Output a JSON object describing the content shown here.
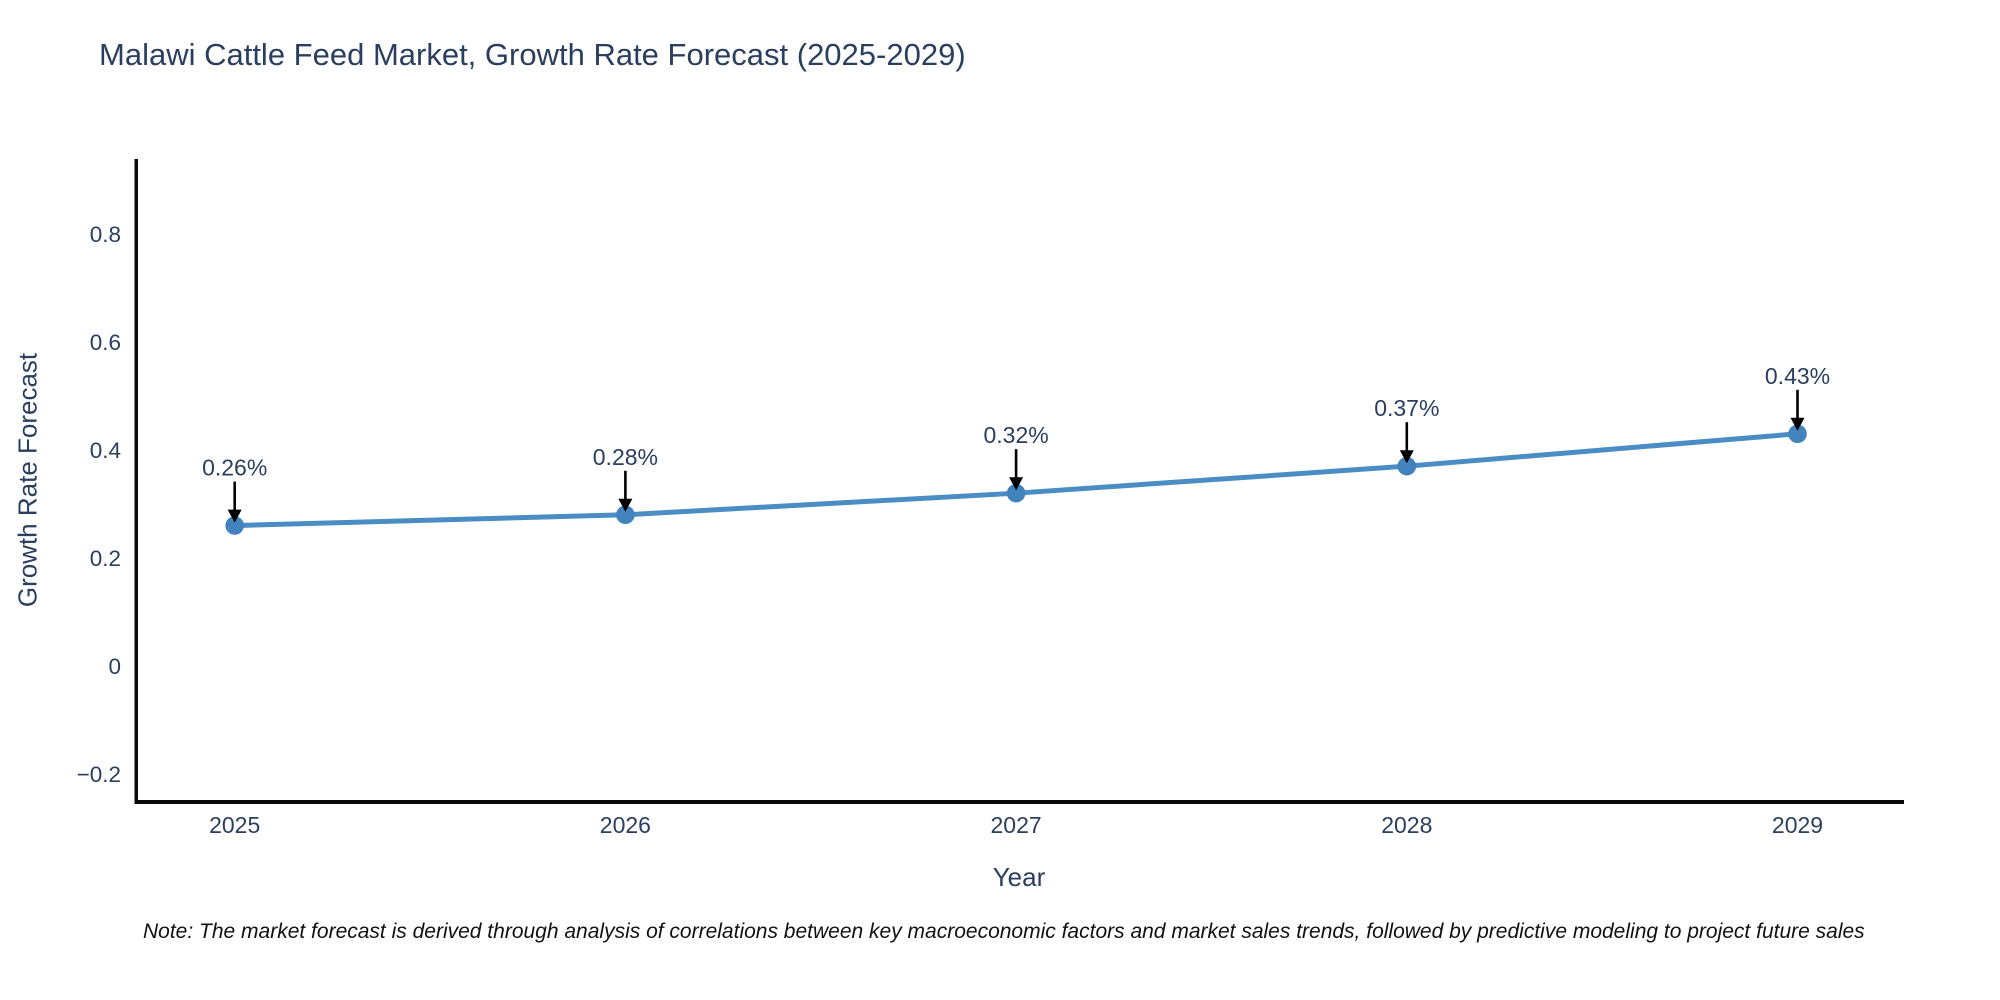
{
  "header": {
    "title": "Malawi Cattle Feed Market, Growth Rate Forecast (2025-2029)"
  },
  "note": {
    "text": "Note: The market forecast is derived through analysis of correlations between key macroeconomic factors and market sales trends, followed by predictive modeling to project future sales"
  },
  "chart_data": {
    "type": "line",
    "title": "Malawi Cattle Feed Market, Growth Rate Forecast (2025-2029)",
    "xlabel": "Year",
    "ylabel": "Growth Rate Forecast",
    "x": [
      2025,
      2026,
      2027,
      2028,
      2029
    ],
    "y": [
      0.26,
      0.28,
      0.32,
      0.37,
      0.43
    ],
    "point_labels": [
      "0.26%",
      "0.28%",
      "0.32%",
      "0.37%",
      "0.43%"
    ],
    "x_tick_labels": [
      "2025",
      "2026",
      "2027",
      "2028",
      "2029"
    ],
    "y_ticks": [
      -0.2,
      0,
      0.2,
      0.4,
      0.6,
      0.8
    ],
    "y_tick_labels": [
      "−0.2",
      "0",
      "0.2",
      "0.4",
      "0.6",
      "0.8"
    ],
    "xlim": [
      2024.75,
      2029.27
    ],
    "ylim": [
      -0.25,
      0.937
    ],
    "grid": false,
    "legend": false,
    "annotations_have_arrows": true,
    "colors": {
      "line": "#4a8cc4",
      "marker": "#4383bd",
      "axis_spine": "#0a0a0a",
      "arrow": "#000000",
      "text": "#2a3f5f",
      "note_text": "#111111"
    }
  }
}
